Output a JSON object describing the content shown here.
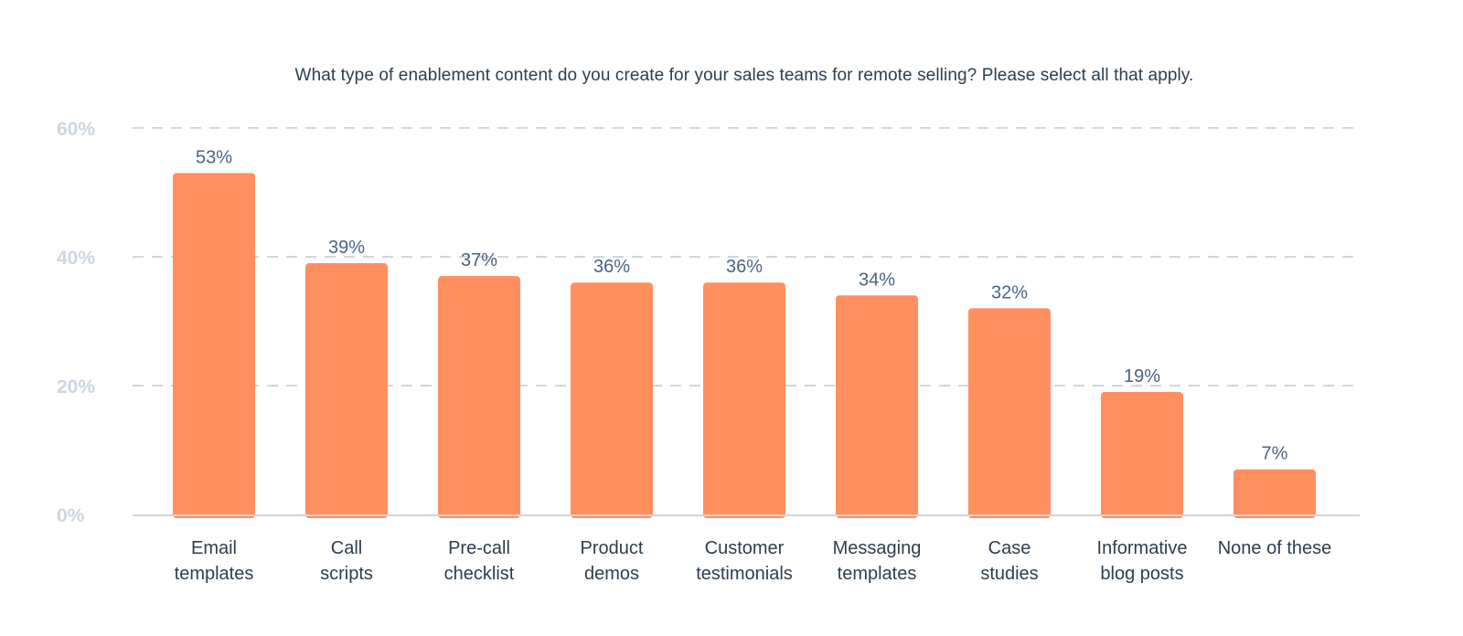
{
  "chart_data": {
    "type": "bar",
    "title": "What type of enablement content do you create for your sales teams for remote selling? Please select all that apply.",
    "categories": [
      [
        "Email",
        "templates"
      ],
      [
        "Call",
        "scripts"
      ],
      [
        "Pre-call",
        "checklist"
      ],
      [
        "Product",
        "demos"
      ],
      [
        "Customer",
        "testimonials"
      ],
      [
        "Messaging",
        "templates"
      ],
      [
        "Case",
        "studies"
      ],
      [
        "Informative",
        "blog posts"
      ],
      [
        "None of these"
      ]
    ],
    "values": [
      53,
      39,
      37,
      36,
      36,
      34,
      32,
      19,
      7
    ],
    "data_labels": [
      "53%",
      "39%",
      "37%",
      "36%",
      "36%",
      "34%",
      "32%",
      "19%",
      "7%"
    ],
    "y_ticks": [
      0,
      20,
      40,
      60
    ],
    "y_tick_labels": [
      "0%",
      "20%",
      "40%",
      "60%"
    ],
    "ylim": [
      0,
      60
    ],
    "xlabel": "",
    "ylabel": "",
    "grid": true,
    "bar_color": "#ff8f5e"
  }
}
